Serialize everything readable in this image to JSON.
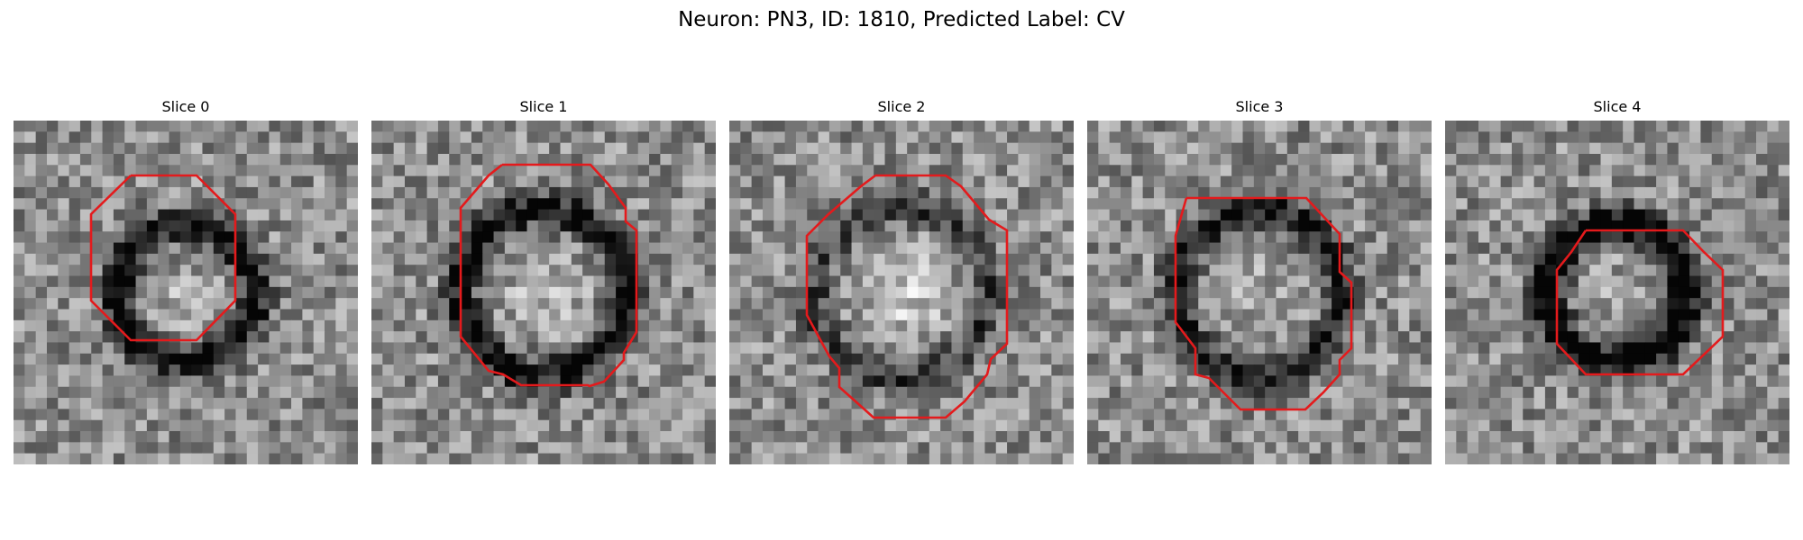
{
  "figure": {
    "title": "Neuron: PN3, ID: 1810, Predicted Label: CV"
  },
  "slices": [
    {
      "label": "Slice 0",
      "seed": 11,
      "ring_radius": 0.3,
      "ring_strength": 0.55,
      "center_brightness": 0.18,
      "contour": "octagon-small"
    },
    {
      "label": "Slice 1",
      "seed": 23,
      "ring_radius": 0.38,
      "ring_strength": 0.5,
      "center_brightness": 0.22,
      "contour": "octagon-large"
    },
    {
      "label": "Slice 2",
      "seed": 37,
      "ring_radius": 0.4,
      "ring_strength": 0.3,
      "center_brightness": 0.35,
      "contour": "octagon-irregular"
    },
    {
      "label": "Slice 3",
      "seed": 41,
      "ring_radius": 0.38,
      "ring_strength": 0.45,
      "center_brightness": 0.15,
      "contour": "octagon-medium"
    },
    {
      "label": "Slice 4",
      "seed": 53,
      "ring_radius": 0.3,
      "ring_strength": 0.65,
      "center_brightness": 0.12,
      "contour": "octagon-small-right"
    }
  ],
  "colors": {
    "contour": "#e41a1c"
  }
}
